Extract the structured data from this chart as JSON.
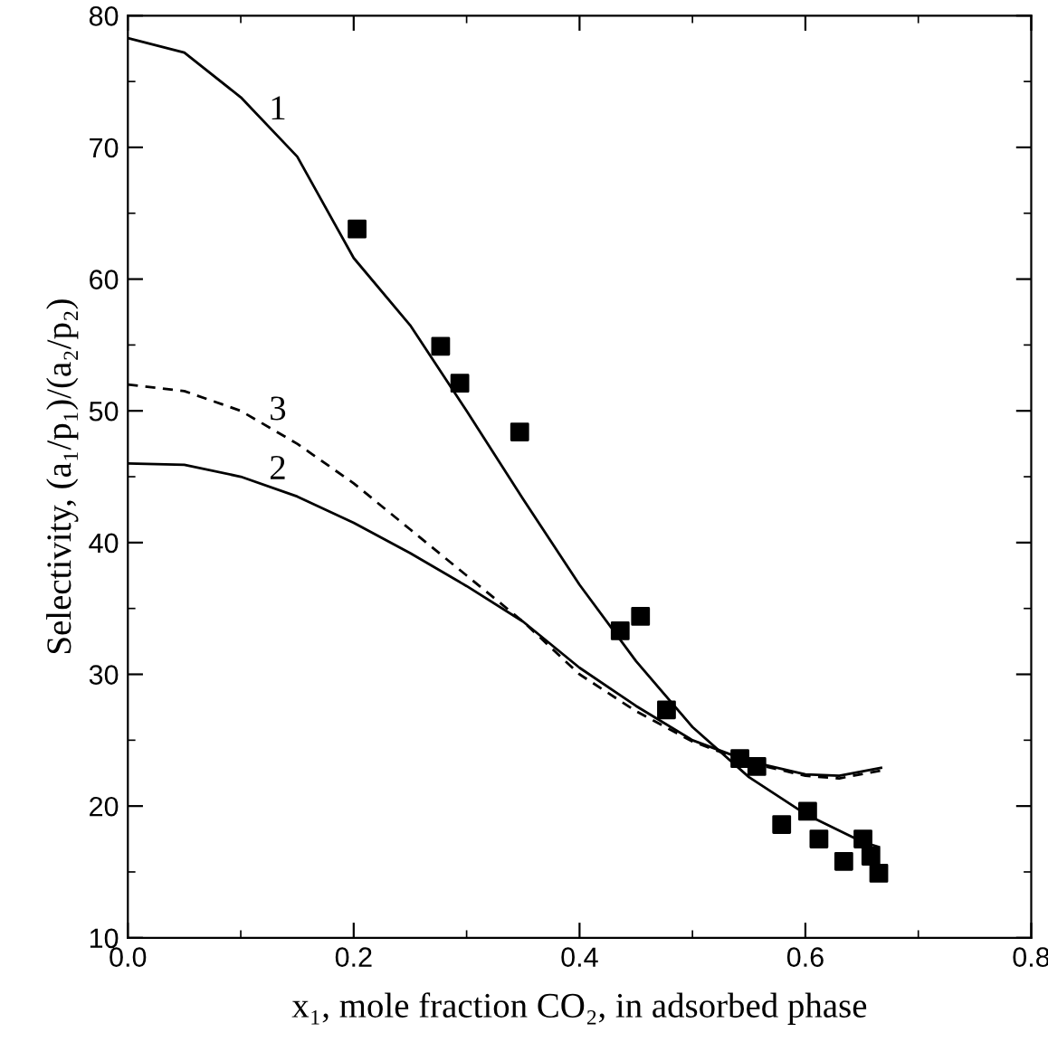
{
  "chart_data": {
    "type": "line",
    "xlabel": "x₁, mole fraction CO₂, in adsorbed phase",
    "ylabel": "Selectivity, (a₁/p₁)/(a₂/p₂)",
    "xlim": [
      0.0,
      0.8
    ],
    "xticks": [
      {
        "value": 0.0,
        "label": "0.0"
      },
      0.2,
      0.4,
      0.6,
      0.8
    ],
    "ylim": [
      10,
      80
    ],
    "yticks": [
      10,
      20,
      30,
      40,
      50,
      60,
      70,
      80
    ],
    "grid": false,
    "legend": false,
    "series": [
      {
        "type": "scatter",
        "marker": "square",
        "color": "#000000",
        "x": [
          0.203,
          0.277,
          0.294,
          0.347,
          0.436,
          0.454,
          0.477,
          0.542,
          0.557,
          0.579,
          0.602,
          0.612,
          0.634,
          0.651,
          0.658,
          0.665
        ],
        "values": [
          63.8,
          54.9,
          52.1,
          48.4,
          33.3,
          34.4,
          27.3,
          23.6,
          23.0,
          18.6,
          19.6,
          17.5,
          15.8,
          17.5,
          16.2,
          14.9
        ]
      },
      {
        "name": "1",
        "line_style": "solid",
        "marker": "none",
        "color": "#000000",
        "x": [
          0,
          0.05,
          0.1,
          0.15,
          0.2,
          0.25,
          0.3,
          0.35,
          0.4,
          0.45,
          0.5,
          0.55,
          0.6,
          0.65,
          0.665
        ],
        "values": [
          78.3,
          77.2,
          73.8,
          69.3,
          61.6,
          56.5,
          50.0,
          43.3,
          36.8,
          31.0,
          26.0,
          22.2,
          19.4,
          17.3,
          16.9
        ]
      },
      {
        "name": "2",
        "line_style": "solid",
        "marker": "none",
        "color": "#000000",
        "x": [
          0,
          0.05,
          0.1,
          0.15,
          0.2,
          0.25,
          0.3,
          0.35,
          0.4,
          0.45,
          0.5,
          0.55,
          0.6,
          0.63,
          0.667
        ],
        "values": [
          46.0,
          45.9,
          45.0,
          43.5,
          41.5,
          39.2,
          36.7,
          34.0,
          30.5,
          27.6,
          25.0,
          23.4,
          22.4,
          22.3,
          22.9
        ]
      },
      {
        "name": "3",
        "line_style": "dashed",
        "marker": "none",
        "color": "#000000",
        "x": [
          0,
          0.05,
          0.1,
          0.15,
          0.2,
          0.25,
          0.3,
          0.35,
          0.4,
          0.45,
          0.5,
          0.55,
          0.6,
          0.63,
          0.667
        ],
        "values": [
          52.0,
          51.5,
          50.0,
          47.5,
          44.5,
          41.0,
          37.5,
          34.0,
          30.0,
          27.2,
          24.9,
          23.3,
          22.3,
          22.1,
          22.7
        ]
      }
    ]
  }
}
